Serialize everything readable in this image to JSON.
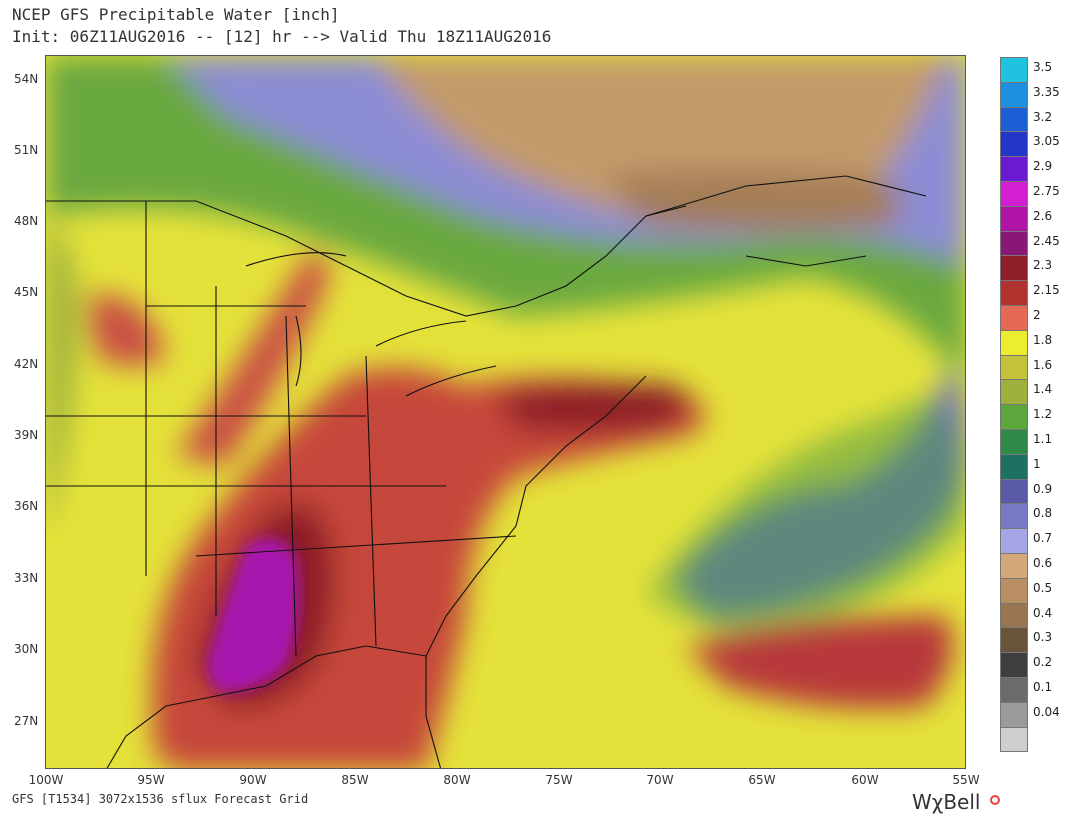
{
  "header": {
    "title_line1": "NCEP GFS Precipitable Water [inch]",
    "title_line2": "Init: 06Z11AUG2016 -- [12] hr --> Valid Thu 18Z11AUG2016"
  },
  "map": {
    "lat_labels": [
      "54N",
      "51N",
      "48N",
      "45N",
      "42N",
      "39N",
      "36N",
      "33N",
      "30N",
      "27N"
    ],
    "lon_labels": [
      "100W",
      "95W",
      "90W",
      "85W",
      "80W",
      "75W",
      "70W",
      "65W",
      "60W",
      "55W"
    ]
  },
  "legend": {
    "levels": [
      {
        "label": "3.5",
        "color": "#1fc3e0"
      },
      {
        "label": "3.35",
        "color": "#1e8ee0"
      },
      {
        "label": "3.2",
        "color": "#1b5ed6"
      },
      {
        "label": "3.05",
        "color": "#2236c8"
      },
      {
        "label": "2.9",
        "color": "#6b1ad4"
      },
      {
        "label": "2.75",
        "color": "#d21fd4"
      },
      {
        "label": "2.6",
        "color": "#b015a8"
      },
      {
        "label": "2.45",
        "color": "#8a1676"
      },
      {
        "label": "2.3",
        "color": "#8c1f27"
      },
      {
        "label": "2.15",
        "color": "#b0332f"
      },
      {
        "label": "2",
        "color": "#e56a55"
      },
      {
        "label": "1.8",
        "color": "#eded2f"
      },
      {
        "label": "1.6",
        "color": "#c2c23b"
      },
      {
        "label": "1.4",
        "color": "#9fb03e"
      },
      {
        "label": "1.2",
        "color": "#5da63b"
      },
      {
        "label": "1.1",
        "color": "#2f8a4a"
      },
      {
        "label": "1",
        "color": "#1d7062"
      },
      {
        "label": "0.9",
        "color": "#5a5aa6"
      },
      {
        "label": "0.8",
        "color": "#7a7ac4"
      },
      {
        "label": "0.7",
        "color": "#a6a6e6"
      },
      {
        "label": "0.6",
        "color": "#d4a77a"
      },
      {
        "label": "0.5",
        "color": "#b98e62"
      },
      {
        "label": "0.4",
        "color": "#9a7551"
      },
      {
        "label": "0.3",
        "color": "#6a533b"
      },
      {
        "label": "0.2",
        "color": "#3e3e3e"
      },
      {
        "label": "0.1",
        "color": "#6b6b6b"
      },
      {
        "label": "0.04",
        "color": "#9a9a9a"
      },
      {
        "label": "",
        "color": "#cfcfcf"
      }
    ]
  },
  "footer": {
    "source": "GFS [T1534] 3072x1536 sflux Forecast Grid",
    "brand": "WχBell"
  }
}
